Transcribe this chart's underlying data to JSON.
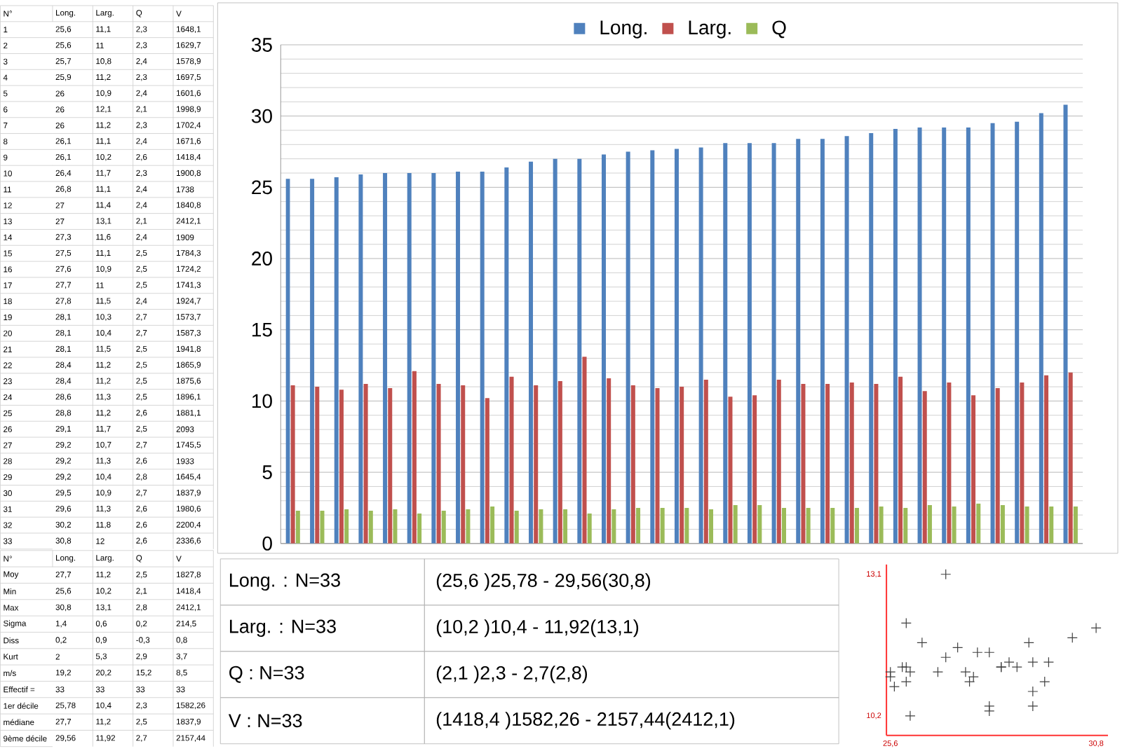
{
  "chart_data": [
    {
      "type": "other",
      "annotations": [
        "N°"
      ],
      "categories": [
        "Long.",
        "Larg.",
        "Q",
        "V"
      ],
      "y_categories": [
        "1",
        "2",
        "3",
        "4",
        "5",
        "6",
        "7",
        "8",
        "9",
        "10",
        "11",
        "12",
        "13",
        "14",
        "15",
        "16",
        "17",
        "18",
        "19",
        "20",
        "21",
        "22",
        "23",
        "24",
        "25",
        "26",
        "27",
        "28",
        "29",
        "30",
        "31",
        "32",
        "33"
      ],
      "cell_labels": [
        [
          "25,6",
          "11,1",
          "2,3",
          "1648,1"
        ],
        [
          "25,6",
          "11",
          "2,3",
          "1629,7"
        ],
        [
          "25,7",
          "10,8",
          "2,4",
          "1578,9"
        ],
        [
          "25,9",
          "11,2",
          "2,3",
          "1697,5"
        ],
        [
          "26",
          "10,9",
          "2,4",
          "1601,6"
        ],
        [
          "26",
          "12,1",
          "2,1",
          "1998,9"
        ],
        [
          "26",
          "11,2",
          "2,3",
          "1702,4"
        ],
        [
          "26,1",
          "11,1",
          "2,4",
          "1671,6"
        ],
        [
          "26,1",
          "10,2",
          "2,6",
          "1418,4"
        ],
        [
          "26,4",
          "11,7",
          "2,3",
          "1900,8"
        ],
        [
          "26,8",
          "11,1",
          "2,4",
          "1738"
        ],
        [
          "27",
          "11,4",
          "2,4",
          "1840,8"
        ],
        [
          "27",
          "13,1",
          "2,1",
          "2412,1"
        ],
        [
          "27,3",
          "11,6",
          "2,4",
          "1909"
        ],
        [
          "27,5",
          "11,1",
          "2,5",
          "1784,3"
        ],
        [
          "27,6",
          "10,9",
          "2,5",
          "1724,2"
        ],
        [
          "27,7",
          "11",
          "2,5",
          "1741,3"
        ],
        [
          "27,8",
          "11,5",
          "2,4",
          "1924,7"
        ],
        [
          "28,1",
          "10,3",
          "2,7",
          "1573,7"
        ],
        [
          "28,1",
          "10,4",
          "2,7",
          "1587,3"
        ],
        [
          "28,1",
          "11,5",
          "2,5",
          "1941,8"
        ],
        [
          "28,4",
          "11,2",
          "2,5",
          "1865,9"
        ],
        [
          "28,4",
          "11,2",
          "2,5",
          "1875,6"
        ],
        [
          "28,6",
          "11,3",
          "2,5",
          "1896,1"
        ],
        [
          "28,8",
          "11,2",
          "2,6",
          "1881,1"
        ],
        [
          "29,1",
          "11,7",
          "2,5",
          "2093"
        ],
        [
          "29,2",
          "10,7",
          "2,7",
          "1745,5"
        ],
        [
          "29,2",
          "11,3",
          "2,6",
          "1933"
        ],
        [
          "29,2",
          "10,4",
          "2,8",
          "1645,4"
        ],
        [
          "29,5",
          "10,9",
          "2,7",
          "1837,9"
        ],
        [
          "29,6",
          "11,3",
          "2,6",
          "1980,6"
        ],
        [
          "30,2",
          "11,8",
          "2,6",
          "2200,4"
        ],
        [
          "30,8",
          "12",
          "2,6",
          "2336,6"
        ]
      ]
    },
    {
      "type": "other",
      "annotations": [
        "N°"
      ],
      "categories": [
        "Long.",
        "Larg.",
        "Q",
        "V"
      ],
      "y_categories": [
        "Moy",
        "Min",
        "Max",
        "Sigma",
        "Diss",
        "Kurt",
        "m/s",
        "Effectif =",
        "1er décile",
        "médiane",
        "9ème décile"
      ],
      "cell_labels": [
        [
          "27,7",
          "11,2",
          "2,5",
          "1827,8"
        ],
        [
          "25,6",
          "10,2",
          "2,1",
          "1418,4"
        ],
        [
          "30,8",
          "13,1",
          "2,8",
          "2412,1"
        ],
        [
          "1,4",
          "0,6",
          "0,2",
          "214,5"
        ],
        [
          "0,2",
          "0,9",
          "-0,3",
          "0,8"
        ],
        [
          "2",
          "5,3",
          "2,9",
          "3,7"
        ],
        [
          "19,2",
          "20,2",
          "15,2",
          "8,5"
        ],
        [
          "33",
          "33",
          "33",
          "33"
        ],
        [
          "25,78",
          "10,4",
          "2,3",
          "1582,26"
        ],
        [
          "27,7",
          "11,2",
          "2,5",
          "1837,9"
        ],
        [
          "29,56",
          "11,92",
          "2,7",
          "2157,44"
        ]
      ]
    },
    {
      "type": "bar",
      "categories": [
        null,
        null,
        null,
        null,
        null,
        null,
        null,
        null,
        null,
        null,
        null,
        null,
        null,
        null,
        null,
        null,
        null,
        null,
        null,
        null,
        null,
        null,
        null,
        null,
        null,
        null,
        null,
        null,
        null,
        null,
        null,
        null,
        null
      ],
      "series": [
        {
          "name": "Long.",
          "color": "#4f81bd",
          "values": [
            25.6,
            25.6,
            25.7,
            25.9,
            26,
            26,
            26,
            26.1,
            26.1,
            26.4,
            26.8,
            27,
            27,
            27.3,
            27.5,
            27.6,
            27.7,
            27.8,
            28.1,
            28.1,
            28.1,
            28.4,
            28.4,
            28.6,
            28.8,
            29.1,
            29.2,
            29.2,
            29.2,
            29.5,
            29.6,
            30.2,
            30.8
          ]
        },
        {
          "name": "Larg.",
          "color": "#c0504d",
          "values": [
            11.1,
            11,
            10.8,
            11.2,
            10.9,
            12.1,
            11.2,
            11.1,
            10.2,
            11.7,
            11.1,
            11.4,
            13.1,
            11.6,
            11.1,
            10.9,
            11,
            11.5,
            10.3,
            10.4,
            11.5,
            11.2,
            11.2,
            11.3,
            11.2,
            11.7,
            10.7,
            11.3,
            10.4,
            10.9,
            11.3,
            11.8,
            12
          ]
        },
        {
          "name": "Q",
          "color": "#9bbb59",
          "values": [
            2.3,
            2.3,
            2.4,
            2.3,
            2.4,
            2.1,
            2.3,
            2.4,
            2.6,
            2.3,
            2.4,
            2.4,
            2.1,
            2.4,
            2.5,
            2.5,
            2.5,
            2.4,
            2.7,
            2.7,
            2.5,
            2.5,
            2.5,
            2.5,
            2.6,
            2.5,
            2.7,
            2.6,
            2.8,
            2.7,
            2.6,
            2.6,
            2.6
          ]
        }
      ],
      "ylim": [
        0,
        35
      ],
      "yticks": [
        0,
        5,
        10,
        15,
        20,
        25,
        30,
        35
      ],
      "grid": "y",
      "legend": "top"
    },
    {
      "type": "other",
      "annotations": [
        "Long. : N=33",
        "(25,6 )25,78 - 29,56(30,8)",
        "Larg. : N=33",
        "(10,2 )10,4 - 11,92(13,1)",
        "Q : N=33",
        "(2,1 )2,3 - 2,7(2,8)",
        "V : N=33",
        "(1418,4 )1582,26 - 2157,44(2412,1)"
      ]
    },
    {
      "type": "scatter",
      "color": "#404040",
      "marker": "cross",
      "x": [
        25.6,
        25.6,
        25.7,
        25.9,
        26,
        26,
        26,
        26.1,
        26.1,
        26.4,
        26.8,
        27,
        27,
        27.3,
        27.5,
        27.6,
        27.7,
        27.8,
        28.1,
        28.1,
        28.1,
        28.4,
        28.4,
        28.6,
        28.8,
        29.1,
        29.2,
        29.2,
        29.2,
        29.5,
        29.6,
        30.2,
        30.8
      ],
      "values": [
        11.1,
        11,
        10.8,
        11.2,
        10.9,
        12.1,
        11.2,
        11.1,
        10.2,
        11.7,
        11.1,
        11.4,
        13.1,
        11.6,
        11.1,
        10.9,
        11,
        11.5,
        10.3,
        10.4,
        11.5,
        11.2,
        11.2,
        11.3,
        11.2,
        11.7,
        10.7,
        11.3,
        10.4,
        10.9,
        11.3,
        11.8,
        12
      ],
      "xlim": [
        25.5,
        31.1
      ],
      "ylim": [
        9.8,
        13.3
      ],
      "xticks": [
        {
          "value": 25.6,
          "label": "25,6"
        },
        {
          "value": 30.8,
          "label": "30,8"
        }
      ],
      "yticks": [
        {
          "value": 10.2,
          "label": "10,2"
        },
        {
          "value": 13.1,
          "label": "13,1"
        }
      ]
    }
  ]
}
